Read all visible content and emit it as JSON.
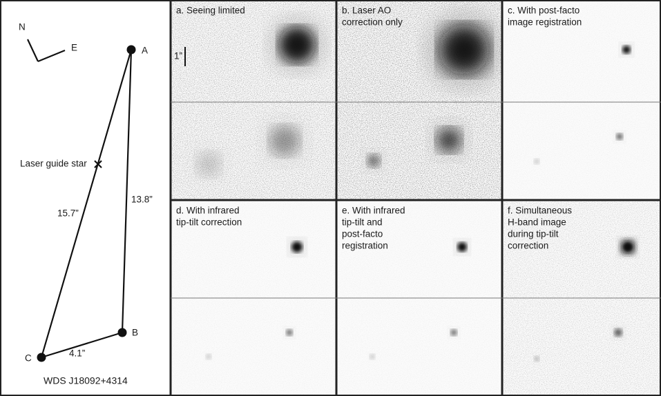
{
  "diagram": {
    "compass": {
      "north": "N",
      "east": "E"
    },
    "stars": {
      "a": "A",
      "b": "B",
      "c": "C"
    },
    "laser_guide_star": "Laser guide star",
    "separations": {
      "a_c": "15.7”",
      "a_b": "13.8”",
      "b_c": "4.1”"
    },
    "target": "WDS J18092+4314"
  },
  "scale_bar": "1”",
  "panels": [
    {
      "lines": [
        "a. Seeing limited"
      ]
    },
    {
      "lines": [
        "b. Laser AO",
        "correction only"
      ]
    },
    {
      "lines": [
        "c. With post-facto",
        "image registration"
      ]
    },
    {
      "lines": [
        "d. With infrared",
        "tip-tilt correction"
      ]
    },
    {
      "lines": [
        "e. With infrared",
        "tip-tilt and",
        "post-facto",
        "registration"
      ]
    },
    {
      "lines": [
        "f. Simultaneous",
        "H-band image",
        "during tip-tilt",
        "correction"
      ]
    }
  ]
}
